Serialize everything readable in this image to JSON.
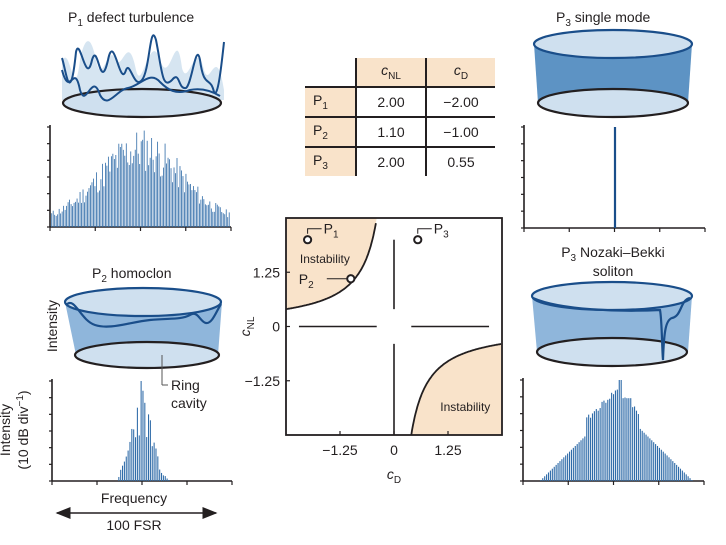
{
  "colors": {
    "bar_blue": "#2f6ba8",
    "line_blue": "#1a4e8a",
    "ring_fill_light": "#cfe0ef",
    "ring_wall": "#5d93c4",
    "instability_fill": "#f9e3ca",
    "axis": "#231f20"
  },
  "panels": {
    "p1": {
      "title_prefix": "P",
      "title_sub": "1",
      "title_rest": " defect turbulence"
    },
    "p2": {
      "title_prefix": "P",
      "title_sub": "2",
      "title_rest": " homoclon"
    },
    "p3a": {
      "title_prefix": "P",
      "title_sub": "3",
      "title_rest": " single mode"
    },
    "p3b": {
      "title_prefix": "P",
      "title_sub": "3",
      "title_rest": " Nozaki–Bekki",
      "title_line2": "soliton"
    }
  },
  "labels": {
    "intensity": "Intensity",
    "intensity_db": "Intensity",
    "intensity_db_unit": "(10 dB div",
    "intensity_db_exp": "−1",
    "intensity_db_close": ")",
    "ring_cavity_1": "Ring",
    "ring_cavity_2": "cavity",
    "frequency": "Frequency",
    "span": "100 FSR"
  },
  "table": {
    "headers": [
      {
        "main": "c",
        "sub": "NL"
      },
      {
        "main": "c",
        "sub": "D"
      }
    ],
    "rows": [
      {
        "label": "P",
        "sub": "1",
        "cnl": "2.00",
        "cd": "−2.00"
      },
      {
        "label": "P",
        "sub": "2",
        "cnl": "1.10",
        "cd": "−1.00"
      },
      {
        "label": "P",
        "sub": "3",
        "cnl": "2.00",
        "cd": "0.55"
      }
    ]
  },
  "chart_data": [
    {
      "type": "scatter",
      "title": "Stability diagram",
      "xlabel_main": "c",
      "xlabel_sub": "D",
      "ylabel_main": "c",
      "ylabel_sub": "NL",
      "xlim": [
        -2.5,
        2.5
      ],
      "ylim": [
        -2.5,
        2.5
      ],
      "xticks": [
        -1.25,
        0,
        1.25
      ],
      "xtick_labels": [
        "−1.25",
        "0",
        "1.25"
      ],
      "yticks": [
        1.25,
        0,
        -1.25
      ],
      "ytick_labels": [
        "1.25",
        "0",
        "−1.25"
      ],
      "points": [
        {
          "name": "P1",
          "label": "P",
          "sub": "1",
          "cD": -2.0,
          "cNL": 2.0
        },
        {
          "name": "P2",
          "label": "P",
          "sub": "2",
          "cD": -1.0,
          "cNL": 1.1
        },
        {
          "name": "P3",
          "label": "P",
          "sub": "3",
          "cD": 0.55,
          "cNL": 2.0
        }
      ],
      "regions": [
        {
          "label": "Instability",
          "quadrant": "top-left",
          "boundary": "cNL*cD = -1"
        },
        {
          "label": "Instability",
          "quadrant": "bottom-right",
          "boundary": "cNL*cD = -1"
        }
      ]
    },
    {
      "type": "bar",
      "name": "P1 spectrum",
      "ylabel": "Intensity (10 dB div-1)",
      "ydiv": 6,
      "shape": "broad multi-mode, noisy dome across full span",
      "envelope_peak_fraction": 1.0
    },
    {
      "type": "bar",
      "name": "P2 spectrum",
      "shape": "narrow comb centered, ~30% of span",
      "envelope_peak_fraction": 1.0
    },
    {
      "type": "bar",
      "name": "P3 single mode spectrum",
      "shape": "single line at center",
      "envelope_peak_fraction": 1.0
    },
    {
      "type": "bar",
      "name": "P3 Nozaki-Bekki spectrum",
      "shape": "triangular comb with central peaks",
      "envelope_peak_fraction": 1.0
    }
  ]
}
